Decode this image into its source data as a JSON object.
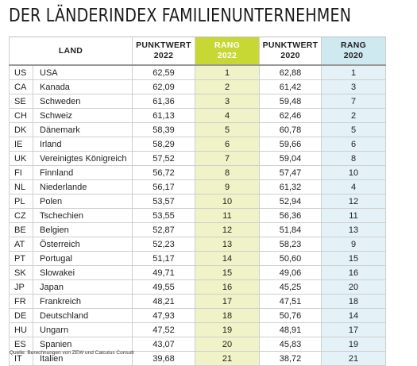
{
  "title": "DER LÄNDERINDEX FAMILIENUNTERNEHMEN",
  "headers": {
    "land": "LAND",
    "punktwert_2022": [
      "PUNKTWERT",
      "2022"
    ],
    "rang_2022": [
      "RANG",
      "2022"
    ],
    "punktwert_2020": [
      "PUNKTWERT",
      "2020"
    ],
    "rang_2020": [
      "RANG",
      "2020"
    ]
  },
  "colors": {
    "rang_2022_header": "#c7d733",
    "rang_2022_cells": "#eff3c7",
    "rang_2020_header": "#cfe9f1",
    "rang_2020_cells": "#e4f1f6"
  },
  "rows": [
    {
      "code": "US",
      "land": "USA",
      "p22": "62,59",
      "r22": "1",
      "p20": "62,88",
      "r20": "1"
    },
    {
      "code": "CA",
      "land": "Kanada",
      "p22": "62,09",
      "r22": "2",
      "p20": "61,42",
      "r20": "3"
    },
    {
      "code": "SE",
      "land": "Schweden",
      "p22": "61,36",
      "r22": "3",
      "p20": "59,48",
      "r20": "7"
    },
    {
      "code": "CH",
      "land": "Schweiz",
      "p22": "61,13",
      "r22": "4",
      "p20": "62,46",
      "r20": "2"
    },
    {
      "code": "DK",
      "land": "Dänemark",
      "p22": "58,39",
      "r22": "5",
      "p20": "60,78",
      "r20": "5"
    },
    {
      "code": "IE",
      "land": "Irland",
      "p22": "58,29",
      "r22": "6",
      "p20": "59,66",
      "r20": "6"
    },
    {
      "code": "UK",
      "land": "Vereinigtes Königreich",
      "p22": "57,52",
      "r22": "7",
      "p20": "59,04",
      "r20": "8"
    },
    {
      "code": "FI",
      "land": "Finnland",
      "p22": "56,72",
      "r22": "8",
      "p20": "57,47",
      "r20": "10"
    },
    {
      "code": "NL",
      "land": "Niederlande",
      "p22": "56,17",
      "r22": "9",
      "p20": "61,32",
      "r20": "4"
    },
    {
      "code": "PL",
      "land": "Polen",
      "p22": "53,57",
      "r22": "10",
      "p20": "52,94",
      "r20": "12"
    },
    {
      "code": "CZ",
      "land": "Tschechien",
      "p22": "53,55",
      "r22": "11",
      "p20": "56,36",
      "r20": "11"
    },
    {
      "code": "BE",
      "land": "Belgien",
      "p22": "52,87",
      "r22": "12",
      "p20": "51,84",
      "r20": "13"
    },
    {
      "code": "AT",
      "land": "Österreich",
      "p22": "52,23",
      "r22": "13",
      "p20": "58,23",
      "r20": "9"
    },
    {
      "code": "PT",
      "land": "Portugal",
      "p22": "51,17",
      "r22": "14",
      "p20": "50,60",
      "r20": "15"
    },
    {
      "code": "SK",
      "land": "Slowakei",
      "p22": "49,71",
      "r22": "15",
      "p20": "49,06",
      "r20": "16"
    },
    {
      "code": "JP",
      "land": "Japan",
      "p22": "49,55",
      "r22": "16",
      "p20": "45,25",
      "r20": "20"
    },
    {
      "code": "FR",
      "land": "Frankreich",
      "p22": "48,21",
      "r22": "17",
      "p20": "47,51",
      "r20": "18"
    },
    {
      "code": "DE",
      "land": "Deutschland",
      "p22": "47,93",
      "r22": "18",
      "p20": "50,76",
      "r20": "14"
    },
    {
      "code": "HU",
      "land": "Ungarn",
      "p22": "47,52",
      "r22": "19",
      "p20": "48,91",
      "r20": "17"
    },
    {
      "code": "ES",
      "land": "Spanien",
      "p22": "43,07",
      "r22": "20",
      "p20": "45,83",
      "r20": "19"
    },
    {
      "code": "IT",
      "land": "Italien",
      "p22": "39,68",
      "r22": "21",
      "p20": "38,72",
      "r20": "21"
    }
  ],
  "source": "Quelle: Berechnungen von ZEW und Calculus Consult"
}
